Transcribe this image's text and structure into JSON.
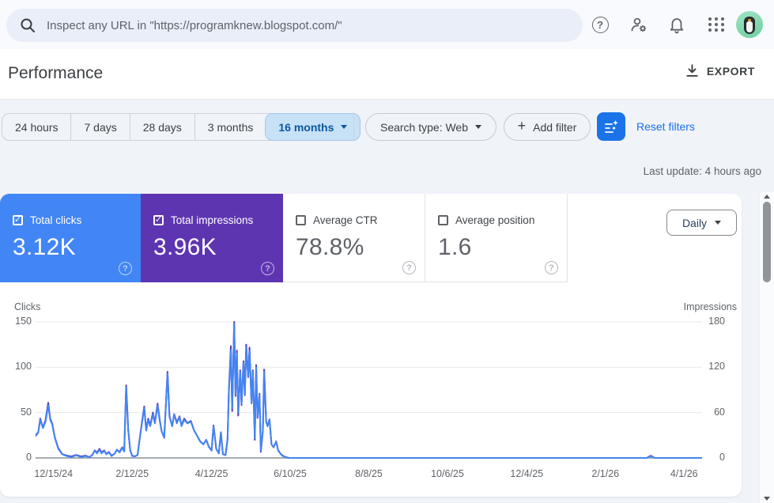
{
  "topbar": {
    "search": {
      "placeholder": "Inspect any URL in \"https://programknew.blogspot.com/\""
    }
  },
  "header": {
    "title": "Performance",
    "export_label": "EXPORT"
  },
  "filters": {
    "date_ranges": [
      {
        "label": "24 hours",
        "selected": false
      },
      {
        "label": "7 days",
        "selected": false
      },
      {
        "label": "28 days",
        "selected": false
      },
      {
        "label": "3 months",
        "selected": false
      },
      {
        "label": "16 months",
        "selected": true,
        "caret": true
      }
    ],
    "search_type_label": "Search type: Web",
    "add_filter_label": "Add filter",
    "reset_label": "Reset filters"
  },
  "status": {
    "last_update": "Last update: 4 hours ago"
  },
  "metrics": {
    "cards": [
      {
        "label": "Total clicks",
        "value": "3.12K",
        "checked": true,
        "bg": "#4285f4",
        "fg": "#ffffff"
      },
      {
        "label": "Total impressions",
        "value": "3.96K",
        "checked": true,
        "bg": "#5e35b1",
        "fg": "#ffffff"
      },
      {
        "label": "Average CTR",
        "value": "78.8%",
        "checked": false,
        "bg": "#ffffff",
        "fg": "#5f6368"
      },
      {
        "label": "Average position",
        "value": "1.6",
        "checked": false,
        "bg": "#ffffff",
        "fg": "#5f6368"
      }
    ]
  },
  "granularity": {
    "selected": "Daily"
  },
  "glyphs": {
    "help": "?",
    "check": "✓",
    "plus": "+"
  },
  "colors": {
    "accent_blue": "#1a73e8",
    "clicks_blue": "#4285f4",
    "impressions_purple": "#5e35b1",
    "selected_chip_bg": "#c7e1f7",
    "selected_chip_text": "#0b57a0",
    "page_bg": "#f0f3f8",
    "grid_line": "#e8eaed",
    "zero_line": "#8a9096"
  },
  "chart_data": {
    "type": "line",
    "left_axis": {
      "label": "Clicks",
      "ticks": [
        0,
        50,
        100,
        150
      ],
      "max": 150
    },
    "right_axis": {
      "label": "Impressions",
      "ticks": [
        0,
        60,
        120,
        180
      ],
      "max": 180
    },
    "x_tick_labels": [
      "12/15/24",
      "2/12/25",
      "4/12/25",
      "6/10/25",
      "8/8/25",
      "10/6/25",
      "12/4/25",
      "2/1/26",
      "4/1/26"
    ],
    "x_tick_pos": [
      0.027,
      0.145,
      0.264,
      0.382,
      0.5,
      0.618,
      0.737,
      0.855,
      0.973
    ],
    "grid": true,
    "legend_position": "none",
    "series": [
      {
        "name": "Clicks",
        "color": "#4285f4",
        "axis": "left",
        "total": "3.12K"
      },
      {
        "name": "Impressions",
        "color": "#5e35b1",
        "axis": "right",
        "total": "3.96K"
      }
    ],
    "points": [
      [
        0.0,
        24,
        30
      ],
      [
        0.004,
        28,
        34
      ],
      [
        0.007,
        42,
        52
      ],
      [
        0.011,
        33,
        40
      ],
      [
        0.015,
        40,
        50
      ],
      [
        0.019,
        58,
        73
      ],
      [
        0.022,
        42,
        52
      ],
      [
        0.025,
        37,
        45
      ],
      [
        0.029,
        22,
        27
      ],
      [
        0.034,
        10,
        13
      ],
      [
        0.04,
        4,
        5
      ],
      [
        0.047,
        2,
        3
      ],
      [
        0.054,
        1,
        2
      ],
      [
        0.061,
        3,
        4
      ],
      [
        0.068,
        1,
        2
      ],
      [
        0.075,
        2,
        3
      ],
      [
        0.081,
        1,
        1
      ],
      [
        0.085,
        3,
        4
      ],
      [
        0.089,
        8,
        10
      ],
      [
        0.092,
        5,
        7
      ],
      [
        0.096,
        9,
        12
      ],
      [
        0.099,
        5,
        7
      ],
      [
        0.103,
        8,
        10
      ],
      [
        0.106,
        4,
        5
      ],
      [
        0.11,
        6,
        8
      ],
      [
        0.114,
        2,
        3
      ],
      [
        0.119,
        5,
        6
      ],
      [
        0.122,
        9,
        11
      ],
      [
        0.126,
        6,
        8
      ],
      [
        0.13,
        11,
        14
      ],
      [
        0.133,
        7,
        9
      ],
      [
        0.136,
        78,
        96
      ],
      [
        0.139,
        30,
        37
      ],
      [
        0.142,
        8,
        10
      ],
      [
        0.145,
        2,
        3
      ],
      [
        0.149,
        2,
        2
      ],
      [
        0.153,
        3,
        4
      ],
      [
        0.157,
        25,
        31
      ],
      [
        0.16,
        40,
        50
      ],
      [
        0.163,
        55,
        68
      ],
      [
        0.166,
        30,
        37
      ],
      [
        0.169,
        42,
        52
      ],
      [
        0.172,
        35,
        43
      ],
      [
        0.176,
        48,
        60
      ],
      [
        0.179,
        38,
        46
      ],
      [
        0.183,
        58,
        72
      ],
      [
        0.186,
        42,
        52
      ],
      [
        0.189,
        30,
        36
      ],
      [
        0.193,
        22,
        27
      ],
      [
        0.198,
        93,
        114
      ],
      [
        0.201,
        45,
        55
      ],
      [
        0.205,
        35,
        42
      ],
      [
        0.208,
        48,
        58
      ],
      [
        0.212,
        38,
        47
      ],
      [
        0.216,
        45,
        55
      ],
      [
        0.219,
        35,
        43
      ],
      [
        0.223,
        42,
        52
      ],
      [
        0.228,
        38,
        46
      ],
      [
        0.233,
        40,
        49
      ],
      [
        0.238,
        30,
        36
      ],
      [
        0.242,
        25,
        30
      ],
      [
        0.247,
        18,
        22
      ],
      [
        0.252,
        15,
        18
      ],
      [
        0.256,
        20,
        24
      ],
      [
        0.26,
        12,
        15
      ],
      [
        0.264,
        8,
        10
      ],
      [
        0.267,
        35,
        43
      ],
      [
        0.271,
        10,
        12
      ],
      [
        0.275,
        5,
        6
      ],
      [
        0.278,
        28,
        34
      ],
      [
        0.281,
        4,
        5
      ],
      [
        0.285,
        3,
        4
      ],
      [
        0.288,
        20,
        25
      ],
      [
        0.29,
        72,
        90
      ],
      [
        0.293,
        119,
        148
      ],
      [
        0.295,
        55,
        62
      ],
      [
        0.298,
        148,
        180
      ],
      [
        0.3,
        70,
        82
      ],
      [
        0.302,
        115,
        142
      ],
      [
        0.304,
        50,
        56
      ],
      [
        0.307,
        95,
        116
      ],
      [
        0.309,
        60,
        70
      ],
      [
        0.312,
        105,
        128
      ],
      [
        0.314,
        70,
        83
      ],
      [
        0.316,
        122,
        150
      ],
      [
        0.319,
        90,
        107
      ],
      [
        0.321,
        118,
        146
      ],
      [
        0.324,
        60,
        73
      ],
      [
        0.326,
        95,
        116
      ],
      [
        0.329,
        22,
        24
      ],
      [
        0.331,
        100,
        123
      ],
      [
        0.333,
        45,
        53
      ],
      [
        0.336,
        70,
        85
      ],
      [
        0.338,
        8,
        8
      ],
      [
        0.341,
        30,
        36
      ],
      [
        0.343,
        95,
        117
      ],
      [
        0.346,
        40,
        48
      ],
      [
        0.348,
        35,
        42
      ],
      [
        0.351,
        42,
        51
      ],
      [
        0.354,
        15,
        18
      ],
      [
        0.357,
        12,
        14
      ],
      [
        0.361,
        18,
        22
      ],
      [
        0.364,
        8,
        10
      ],
      [
        0.368,
        4,
        5
      ],
      [
        0.371,
        2,
        3
      ],
      [
        0.375,
        1,
        1
      ],
      [
        0.38,
        0,
        0
      ],
      [
        0.42,
        0,
        0
      ],
      [
        0.48,
        0,
        0
      ],
      [
        0.54,
        0,
        0
      ],
      [
        0.6,
        0,
        0
      ],
      [
        0.66,
        0,
        0
      ],
      [
        0.72,
        0,
        0
      ],
      [
        0.78,
        0,
        0
      ],
      [
        0.84,
        0,
        0
      ],
      [
        0.9,
        0,
        0
      ],
      [
        0.917,
        0,
        0
      ],
      [
        0.923,
        2,
        3
      ],
      [
        0.929,
        0,
        0
      ],
      [
        0.96,
        0,
        0
      ],
      [
        1.0,
        0,
        0
      ]
    ]
  }
}
